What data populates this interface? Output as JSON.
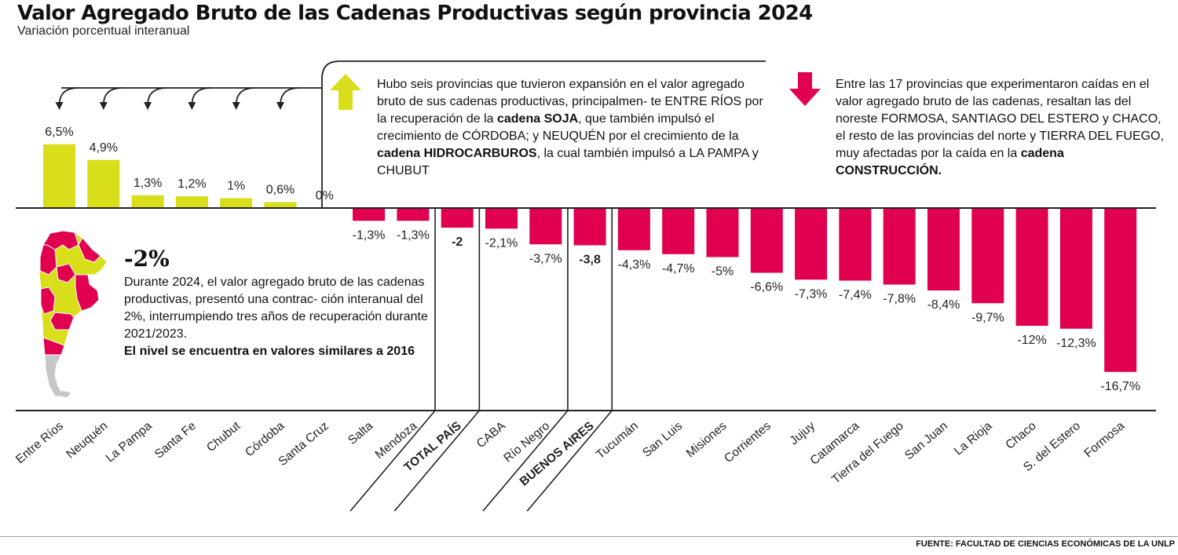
{
  "header": {
    "title": "Valor Agregado Bruto de las Cadenas Productivas según provincia 2024",
    "subtitle": "Variación porcentual interanual"
  },
  "annotations": {
    "up": {
      "pre1": "Hubo seis provincias que tuvieron expansión en el valor agregado bruto de sus cadenas productivas, principalmen- te ENTRE RÍOS por la recuperación de la ",
      "bold1": "cadena SOJA",
      "mid1": ", que también impulsó el crecimiento de CÓRDOBA; y NEUQUÉN por el crecimiento de la ",
      "bold2": "cadena HIDROCARBUROS",
      "post": ", la cual también impulsó a LA PAMPA y CHUBUT"
    },
    "down": {
      "pre": "Entre las 17 provincias que experimentaron caídas en el valor agregado bruto de las cadenas, resaltan las del noreste FORMOSA, SANTIAGO DEL ESTERO y CHACO, el resto de las provincias del norte y TIERRA DEL FUEGO, muy afectadas por la caída en la ",
      "bold": "cadena CONSTRUCCIÓN."
    }
  },
  "summary": {
    "value": "-2%",
    "text": "Durante 2024, el valor agregado bruto de las cadenas productivas, presentó una contrac- ción interanual del 2%, interrumpiendo tres años de recuperación durante 2021/2023.",
    "bold": "El nivel se encuentra en valores similares a 2016"
  },
  "source": {
    "label": "FUENTE:",
    "text": "FACULTAD DE CIENCIAS ECONÓMICAS DE LA UNLP"
  },
  "colors": {
    "positive": "#d9de1a",
    "negative": "#e0004f",
    "axis": "#222222",
    "map_gray": "#c7c7c7"
  },
  "icons": {
    "up": "arrow-up-icon",
    "down": "arrow-down-icon",
    "map": "argentina-map-icon"
  },
  "chart_data": {
    "type": "bar",
    "categories": [
      "Entre Ríos",
      "Neuquén",
      "La Pampa",
      "Santa Fe",
      "Chubut",
      "Córdoba",
      "Santa Cruz",
      "Salta",
      "Mendoza",
      "TOTAL PAÍS",
      "CABA",
      "Río Negro",
      "BUENOS AIRES",
      "Tucumán",
      "San Luis",
      "Misiones",
      "Corrientes",
      "Jujuy",
      "Catamarca",
      "Tierra del Fuego",
      "San Juan",
      "La Rioja",
      "Chaco",
      "S. del Estero",
      "Formosa"
    ],
    "values": [
      6.5,
      4.9,
      1.3,
      1.2,
      1.0,
      0.6,
      0,
      -1.3,
      -1.3,
      -2.0,
      -2.1,
      -3.7,
      -3.8,
      -4.3,
      -4.7,
      -5.0,
      -6.6,
      -7.3,
      -7.4,
      -7.8,
      -8.4,
      -9.7,
      -12.0,
      -12.3,
      -16.7
    ],
    "labels": [
      "6,5%",
      "4,9%",
      "1,3%",
      "1,2%",
      "1%",
      "0,6%",
      "0%",
      "-1,3%",
      "-1,3%",
      "-2",
      "-2,1%",
      "-3,7%",
      "-3,8",
      "-4,3%",
      "-4,7%",
      "-5%",
      "-6,6%",
      "-7,3%",
      "-7,4%",
      "-7,8%",
      "-8,4%",
      "-9,7%",
      "-12%",
      "-12,3%",
      "-16,7%"
    ],
    "highlighted": [
      "TOTAL PAÍS",
      "BUENOS AIRES"
    ],
    "ylim": [
      -16.7,
      6.5
    ],
    "xlabel": "",
    "ylabel": "",
    "grid": false
  }
}
